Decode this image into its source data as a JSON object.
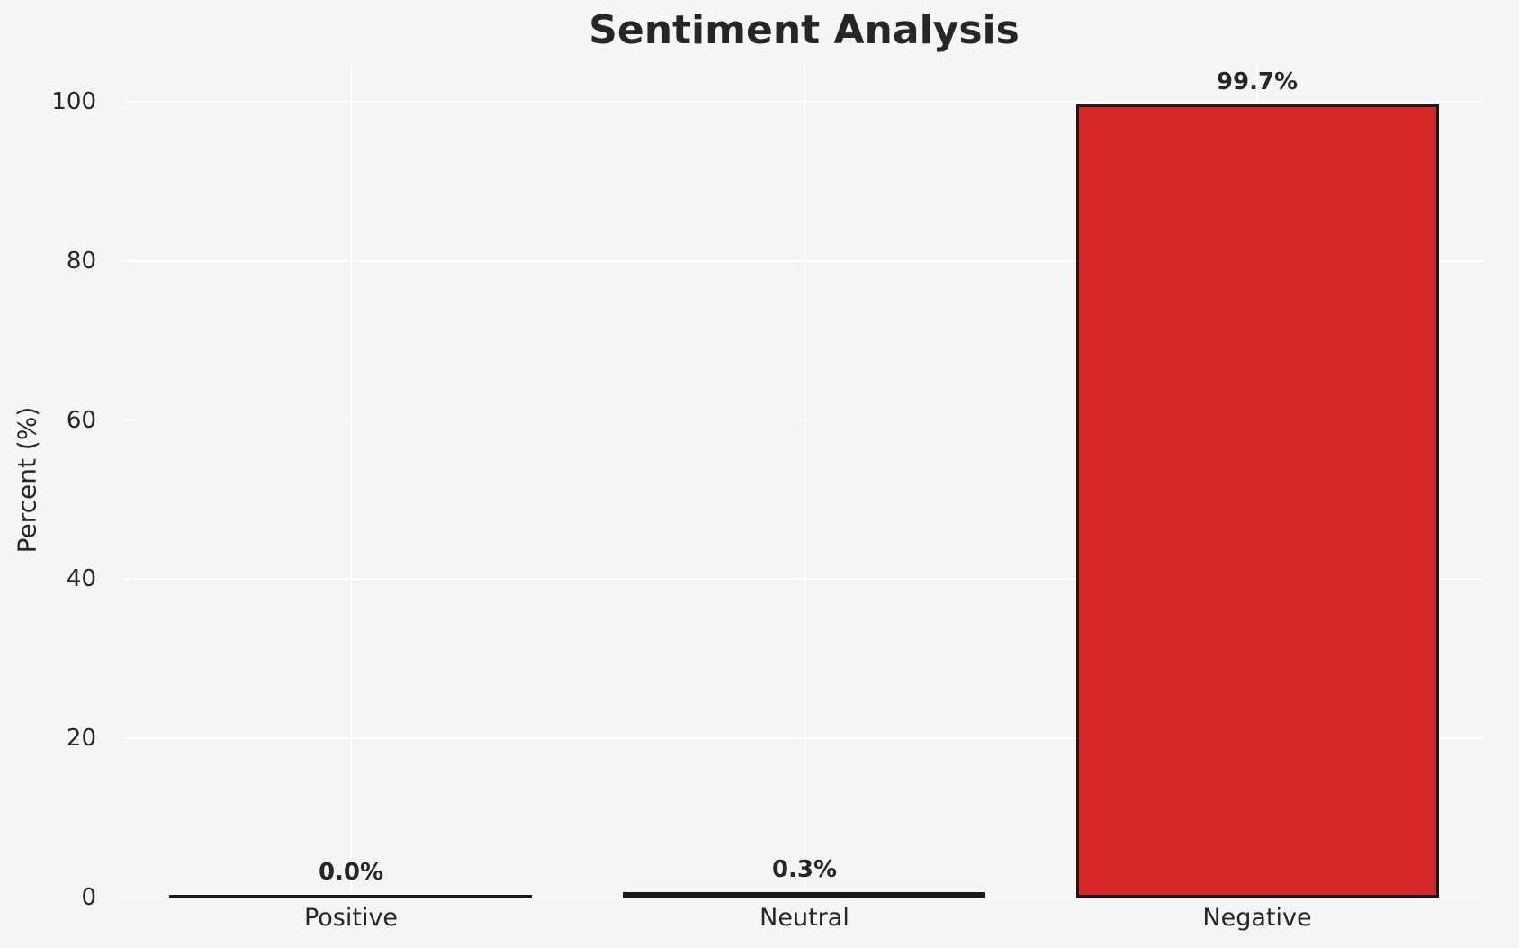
{
  "style": {
    "background": "#f5f5f5",
    "grid_color": "#ffffff",
    "text_color": "#262626",
    "bar_edge_color": "#1a1a1a"
  },
  "chart_data": {
    "type": "bar",
    "title": "Sentiment Analysis",
    "ylabel": "Percent (%)",
    "xlabel": "",
    "categories": [
      "Positive",
      "Neutral",
      "Negative"
    ],
    "values": [
      0.0,
      0.3,
      99.7
    ],
    "value_labels": [
      "0.0%",
      "0.3%",
      "99.7%"
    ],
    "bar_colors": [
      null,
      null,
      "#d62728"
    ],
    "yticks": [
      0,
      20,
      40,
      60,
      80,
      100
    ],
    "ylim": [
      0,
      105
    ],
    "grid": true,
    "legend_position": "none"
  }
}
